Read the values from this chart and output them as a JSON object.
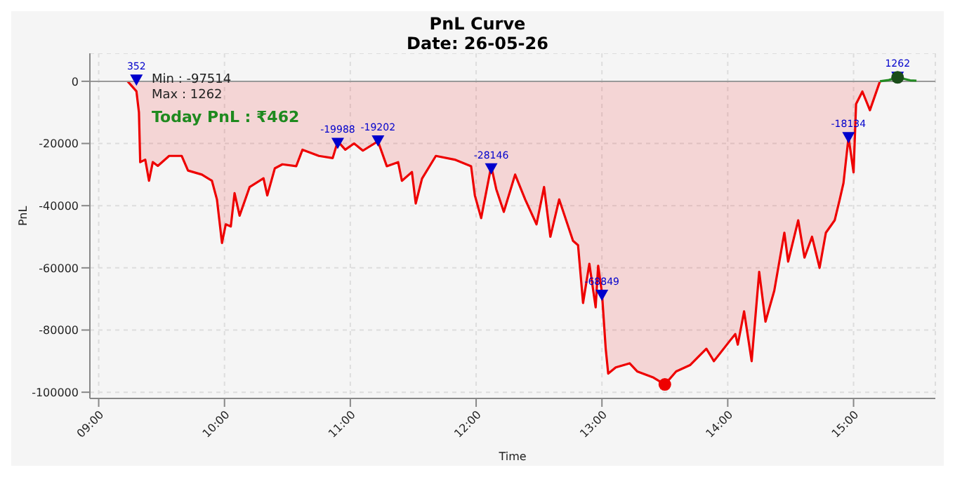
{
  "chart_data": {
    "type": "area",
    "title": "PnL Curve",
    "subtitle": "Date: 26-05-26",
    "xlabel": "Time",
    "ylabel": "PnL",
    "annotations": [
      "Min : -97514",
      "Max : 1262",
      "Today PnL : ₹462"
    ],
    "series": [
      {
        "color": "#ee0000",
        "x": [
          9.23,
          9.3,
          9.32,
          9.33,
          9.37,
          9.4,
          9.43,
          9.47,
          9.56,
          9.66,
          9.71,
          9.82,
          9.9,
          9.94,
          9.98,
          10.01,
          10.05,
          10.08,
          10.12,
          10.2,
          10.31,
          10.34,
          10.4,
          10.46,
          10.57,
          10.62,
          10.75,
          10.86,
          10.9,
          10.96,
          11.03,
          11.1,
          11.22,
          11.29,
          11.38,
          11.41,
          11.49,
          11.52,
          11.57,
          11.68,
          11.83,
          11.96,
          11.99,
          12.04,
          12.12,
          12.16,
          12.22,
          12.31,
          12.39,
          12.48,
          12.54,
          12.59,
          12.66,
          12.77,
          12.81,
          12.85,
          12.9,
          12.95,
          12.97,
          13.0,
          13.03,
          13.05,
          13.11,
          13.22,
          13.28,
          13.41,
          13.5,
          13.59,
          13.7,
          13.83,
          13.89,
          14.02,
          14.06,
          14.08,
          14.13,
          14.19,
          14.25,
          14.3,
          14.37,
          14.45,
          14.48,
          14.56,
          14.61,
          14.67,
          14.73,
          14.78,
          14.85,
          14.89,
          14.92,
          14.96,
          15.0,
          15.02,
          15.07,
          15.13,
          15.21
        ],
        "values": [
          0,
          -3200,
          -10000,
          -26000,
          -25200,
          -32000,
          -26000,
          -27200,
          -24000,
          -24000,
          -28700,
          -30000,
          -32000,
          -38000,
          -52000,
          -46000,
          -46700,
          -36000,
          -43200,
          -34000,
          -31200,
          -36700,
          -28000,
          -26700,
          -27300,
          -22000,
          -24000,
          -24700,
          -19300,
          -22000,
          -20000,
          -22300,
          -19300,
          -27300,
          -26000,
          -32000,
          -29200,
          -39300,
          -31300,
          -24000,
          -25200,
          -27300,
          -36700,
          -44000,
          -27300,
          -34700,
          -42000,
          -30000,
          -38000,
          -46000,
          -34000,
          -50000,
          -38000,
          -51300,
          -52700,
          -71300,
          -58700,
          -72700,
          -59300,
          -68000,
          -86000,
          -94000,
          -92000,
          -90700,
          -93300,
          -95300,
          -97514,
          -93300,
          -91300,
          -86000,
          -90000,
          -83300,
          -81300,
          -84700,
          -74000,
          -90000,
          -61300,
          -77300,
          -67300,
          -48700,
          -58000,
          -44700,
          -56700,
          -50000,
          -60000,
          -48700,
          -44700,
          -38000,
          -32700,
          -18000,
          -29300,
          -7300,
          -3300,
          -9300,
          0
        ]
      },
      {
        "type": "line",
        "color": "#228b22",
        "x": [
          15.21,
          15.28,
          15.35,
          15.45,
          15.5
        ],
        "values": [
          0,
          400,
          1262,
          300,
          200
        ]
      },
      {
        "type": "scatter",
        "color": "#0000cc",
        "marker": "triangle",
        "x": [
          9.3,
          10.9,
          11.22,
          12.12,
          13.0,
          14.96,
          15.35
        ],
        "values": [
          352,
          -19988,
          -19202,
          -28146,
          -68849,
          -18134,
          1262
        ],
        "value_labels": [
          "352",
          "-19988",
          "-19202",
          "-28146",
          "-68849",
          "-18134",
          "1262"
        ]
      },
      {
        "type": "scatter",
        "color": "#ee0000",
        "marker": "circle",
        "x": [
          13.5
        ],
        "values": [
          -97514
        ]
      },
      {
        "type": "scatter",
        "color": "#1a4d1a",
        "marker": "circle",
        "x": [
          15.35
        ],
        "values": [
          1262
        ]
      }
    ],
    "xlim": [
      8.93,
      15.65
    ],
    "xticks": [
      {
        "value": 9,
        "label": "09:00"
      },
      {
        "value": 10,
        "label": "10:00"
      },
      {
        "value": 11,
        "label": "11:00"
      },
      {
        "value": 12,
        "label": "12:00"
      },
      {
        "value": 13,
        "label": "13:00"
      },
      {
        "value": 14,
        "label": "14:00"
      },
      {
        "value": 15,
        "label": "15:00"
      }
    ],
    "ylim": [
      -102000,
      9000
    ],
    "yticks": [
      -100000,
      -80000,
      -60000,
      -40000,
      -20000,
      0
    ],
    "grid": true,
    "legend": false
  }
}
